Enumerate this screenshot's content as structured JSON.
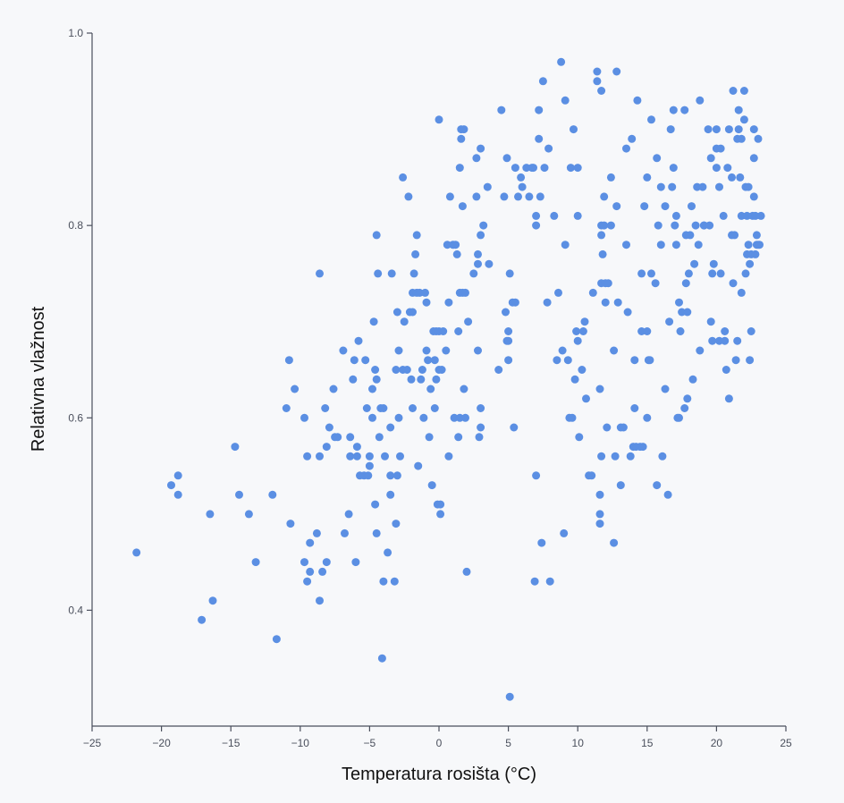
{
  "chart_data": {
    "type": "scatter",
    "title": "",
    "xlabel": "Temperatura rosišta (°C)",
    "ylabel": "Relativna vlažnost",
    "xlim": [
      -25,
      25
    ],
    "ylim": [
      0.3,
      1.0
    ],
    "x_ticks": [
      "−25",
      "−20",
      "−15",
      "−10",
      "−5",
      "0",
      "5",
      "10",
      "15",
      "20",
      "25"
    ],
    "y_ticks": [
      "0.4",
      "0.6",
      "0.8",
      "1.0"
    ],
    "grid": false,
    "point_color": "#5b8fe3",
    "points": [
      [
        -21.8,
        0.46
      ],
      [
        -19.3,
        0.53
      ],
      [
        -18.8,
        0.54
      ],
      [
        -18.8,
        0.52
      ],
      [
        -17.1,
        0.39
      ],
      [
        -16.5,
        0.5
      ],
      [
        -16.3,
        0.41
      ],
      [
        -14.7,
        0.57
      ],
      [
        -14.4,
        0.52
      ],
      [
        -13.7,
        0.5
      ],
      [
        -13.2,
        0.45
      ],
      [
        -12.0,
        0.52
      ],
      [
        -11.7,
        0.37
      ],
      [
        -11.0,
        0.61
      ],
      [
        -10.8,
        0.66
      ],
      [
        -10.7,
        0.49
      ],
      [
        -10.4,
        0.63
      ],
      [
        -9.7,
        0.6
      ],
      [
        -9.7,
        0.45
      ],
      [
        -9.5,
        0.56
      ],
      [
        -9.5,
        0.43
      ],
      [
        -9.3,
        0.47
      ],
      [
        -9.3,
        0.44
      ],
      [
        -8.8,
        0.48
      ],
      [
        -8.6,
        0.75
      ],
      [
        -8.6,
        0.56
      ],
      [
        -8.6,
        0.41
      ],
      [
        -8.4,
        0.44
      ],
      [
        -8.2,
        0.61
      ],
      [
        -8.1,
        0.57
      ],
      [
        -8.1,
        0.45
      ],
      [
        -7.9,
        0.59
      ],
      [
        -7.6,
        0.63
      ],
      [
        -7.5,
        0.58
      ],
      [
        -7.3,
        0.58
      ],
      [
        -6.9,
        0.67
      ],
      [
        -6.8,
        0.48
      ],
      [
        -6.5,
        0.5
      ],
      [
        -6.4,
        0.58
      ],
      [
        -6.4,
        0.56
      ],
      [
        -6.2,
        0.64
      ],
      [
        -6.1,
        0.66
      ],
      [
        -6.0,
        0.45
      ],
      [
        -5.9,
        0.57
      ],
      [
        -5.9,
        0.56
      ],
      [
        -5.8,
        0.68
      ],
      [
        -5.7,
        0.54
      ],
      [
        -5.4,
        0.54
      ],
      [
        -5.3,
        0.66
      ],
      [
        -5.2,
        0.61
      ],
      [
        -5.1,
        0.54
      ],
      [
        -5.0,
        0.55
      ],
      [
        -5.0,
        0.56
      ],
      [
        -4.8,
        0.6
      ],
      [
        -4.8,
        0.63
      ],
      [
        -4.7,
        0.7
      ],
      [
        -4.6,
        0.65
      ],
      [
        -4.6,
        0.51
      ],
      [
        -4.5,
        0.48
      ],
      [
        -4.5,
        0.64
      ],
      [
        -4.5,
        0.79
      ],
      [
        -4.4,
        0.75
      ],
      [
        -4.3,
        0.58
      ],
      [
        -4.2,
        0.61
      ],
      [
        -4.1,
        0.35
      ],
      [
        -4.0,
        0.43
      ],
      [
        -4.0,
        0.61
      ],
      [
        -3.9,
        0.56
      ],
      [
        -3.7,
        0.46
      ],
      [
        -3.5,
        0.52
      ],
      [
        -3.5,
        0.59
      ],
      [
        -3.5,
        0.54
      ],
      [
        -3.4,
        0.75
      ],
      [
        -3.2,
        0.43
      ],
      [
        -3.1,
        0.49
      ],
      [
        -3.1,
        0.65
      ],
      [
        -3.0,
        0.71
      ],
      [
        -3.0,
        0.54
      ],
      [
        -2.9,
        0.67
      ],
      [
        -2.9,
        0.6
      ],
      [
        -2.8,
        0.56
      ],
      [
        -2.6,
        0.85
      ],
      [
        -2.6,
        0.65
      ],
      [
        -2.5,
        0.7
      ],
      [
        -2.3,
        0.65
      ],
      [
        -2.2,
        0.83
      ],
      [
        -2.1,
        0.71
      ],
      [
        -2.0,
        0.64
      ],
      [
        -1.9,
        0.61
      ],
      [
        -1.9,
        0.71
      ],
      [
        -1.9,
        0.73
      ],
      [
        -1.8,
        0.75
      ],
      [
        -1.7,
        0.77
      ],
      [
        -1.6,
        0.79
      ],
      [
        -1.6,
        0.73
      ],
      [
        -1.5,
        0.55
      ],
      [
        -1.4,
        0.73
      ],
      [
        -1.3,
        0.64
      ],
      [
        -1.2,
        0.65
      ],
      [
        -1.1,
        0.6
      ],
      [
        -1.0,
        0.73
      ],
      [
        -0.9,
        0.72
      ],
      [
        -0.9,
        0.67
      ],
      [
        -0.8,
        0.66
      ],
      [
        -0.7,
        0.58
      ],
      [
        -0.6,
        0.63
      ],
      [
        -0.5,
        0.53
      ],
      [
        -0.4,
        0.69
      ],
      [
        -0.3,
        0.61
      ],
      [
        -0.3,
        0.66
      ],
      [
        -0.2,
        0.64
      ],
      [
        -0.2,
        0.69
      ],
      [
        -0.1,
        0.51
      ],
      [
        0.0,
        0.91
      ],
      [
        0.0,
        0.65
      ],
      [
        0.0,
        0.69
      ],
      [
        0.1,
        0.51
      ],
      [
        0.1,
        0.5
      ],
      [
        0.2,
        0.65
      ],
      [
        0.3,
        0.69
      ],
      [
        0.5,
        0.67
      ],
      [
        0.6,
        0.78
      ],
      [
        0.7,
        0.56
      ],
      [
        0.7,
        0.72
      ],
      [
        0.8,
        0.83
      ],
      [
        1.0,
        0.78
      ],
      [
        1.1,
        0.6
      ],
      [
        1.2,
        0.78
      ],
      [
        1.3,
        0.77
      ],
      [
        1.4,
        0.69
      ],
      [
        1.4,
        0.58
      ],
      [
        1.5,
        0.6
      ],
      [
        1.5,
        0.73
      ],
      [
        1.5,
        0.86
      ],
      [
        1.6,
        0.9
      ],
      [
        1.6,
        0.89
      ],
      [
        1.7,
        0.82
      ],
      [
        1.7,
        0.73
      ],
      [
        1.8,
        0.63
      ],
      [
        1.8,
        0.9
      ],
      [
        1.9,
        0.6
      ],
      [
        1.9,
        0.73
      ],
      [
        2.0,
        0.44
      ],
      [
        2.1,
        0.7
      ],
      [
        2.5,
        0.75
      ],
      [
        2.7,
        0.83
      ],
      [
        2.7,
        0.87
      ],
      [
        2.8,
        0.67
      ],
      [
        2.8,
        0.77
      ],
      [
        2.8,
        0.76
      ],
      [
        2.9,
        0.58
      ],
      [
        3.0,
        0.88
      ],
      [
        3.0,
        0.79
      ],
      [
        3.0,
        0.61
      ],
      [
        3.0,
        0.59
      ],
      [
        3.2,
        0.8
      ],
      [
        3.5,
        0.84
      ],
      [
        3.6,
        0.76
      ],
      [
        4.3,
        0.65
      ],
      [
        4.5,
        0.92
      ],
      [
        4.7,
        0.83
      ],
      [
        4.8,
        0.71
      ],
      [
        4.9,
        0.87
      ],
      [
        4.9,
        0.68
      ],
      [
        5.0,
        0.69
      ],
      [
        5.0,
        0.68
      ],
      [
        5.0,
        0.66
      ],
      [
        5.1,
        0.75
      ],
      [
        5.1,
        0.31
      ],
      [
        5.3,
        0.72
      ],
      [
        5.4,
        0.59
      ],
      [
        5.5,
        0.72
      ],
      [
        5.5,
        0.86
      ],
      [
        5.7,
        0.83
      ],
      [
        5.9,
        0.85
      ],
      [
        6.0,
        0.84
      ],
      [
        6.3,
        0.86
      ],
      [
        6.5,
        0.83
      ],
      [
        6.7,
        0.86
      ],
      [
        6.8,
        0.86
      ],
      [
        6.9,
        0.43
      ],
      [
        7.0,
        0.8
      ],
      [
        7.0,
        0.81
      ],
      [
        7.0,
        0.54
      ],
      [
        7.2,
        0.92
      ],
      [
        7.2,
        0.89
      ],
      [
        7.3,
        0.83
      ],
      [
        7.4,
        0.47
      ],
      [
        7.5,
        0.95
      ],
      [
        7.6,
        0.86
      ],
      [
        7.8,
        0.72
      ],
      [
        7.9,
        0.88
      ],
      [
        8.0,
        0.43
      ],
      [
        8.3,
        0.81
      ],
      [
        8.5,
        0.66
      ],
      [
        8.6,
        0.73
      ],
      [
        8.8,
        0.97
      ],
      [
        8.9,
        0.67
      ],
      [
        9.0,
        0.48
      ],
      [
        9.1,
        0.93
      ],
      [
        9.1,
        0.78
      ],
      [
        9.3,
        0.66
      ],
      [
        9.4,
        0.6
      ],
      [
        9.5,
        0.86
      ],
      [
        9.6,
        0.6
      ],
      [
        9.7,
        0.9
      ],
      [
        9.8,
        0.64
      ],
      [
        9.9,
        0.69
      ],
      [
        10.0,
        0.86
      ],
      [
        10.0,
        0.81
      ],
      [
        10.0,
        0.68
      ],
      [
        10.1,
        0.58
      ],
      [
        10.3,
        0.65
      ],
      [
        10.4,
        0.69
      ],
      [
        10.5,
        0.7
      ],
      [
        10.6,
        0.62
      ],
      [
        10.8,
        0.54
      ],
      [
        11.0,
        0.54
      ],
      [
        11.1,
        0.73
      ],
      [
        11.4,
        0.96
      ],
      [
        11.4,
        0.95
      ],
      [
        11.6,
        0.63
      ],
      [
        11.6,
        0.52
      ],
      [
        11.6,
        0.5
      ],
      [
        11.6,
        0.49
      ],
      [
        11.7,
        0.94
      ],
      [
        11.7,
        0.8
      ],
      [
        11.7,
        0.79
      ],
      [
        11.7,
        0.74
      ],
      [
        11.7,
        0.56
      ],
      [
        11.8,
        0.77
      ],
      [
        11.9,
        0.83
      ],
      [
        11.9,
        0.8
      ],
      [
        12.0,
        0.74
      ],
      [
        12.0,
        0.72
      ],
      [
        12.1,
        0.59
      ],
      [
        12.2,
        0.74
      ],
      [
        12.4,
        0.8
      ],
      [
        12.4,
        0.85
      ],
      [
        12.6,
        0.47
      ],
      [
        12.6,
        0.67
      ],
      [
        12.7,
        0.56
      ],
      [
        12.8,
        0.96
      ],
      [
        12.8,
        0.82
      ],
      [
        12.9,
        0.72
      ],
      [
        13.1,
        0.59
      ],
      [
        13.1,
        0.53
      ],
      [
        13.3,
        0.59
      ],
      [
        13.5,
        0.88
      ],
      [
        13.5,
        0.78
      ],
      [
        13.6,
        0.71
      ],
      [
        13.8,
        0.56
      ],
      [
        13.9,
        0.89
      ],
      [
        14.0,
        0.57
      ],
      [
        14.1,
        0.66
      ],
      [
        14.1,
        0.61
      ],
      [
        14.2,
        0.57
      ],
      [
        14.3,
        0.93
      ],
      [
        14.5,
        0.57
      ],
      [
        14.6,
        0.69
      ],
      [
        14.6,
        0.75
      ],
      [
        14.7,
        0.57
      ],
      [
        14.8,
        0.82
      ],
      [
        15.0,
        0.6
      ],
      [
        15.0,
        0.69
      ],
      [
        15.0,
        0.85
      ],
      [
        15.1,
        0.66
      ],
      [
        15.2,
        0.66
      ],
      [
        15.3,
        0.91
      ],
      [
        15.3,
        0.75
      ],
      [
        15.6,
        0.74
      ],
      [
        15.7,
        0.53
      ],
      [
        15.7,
        0.87
      ],
      [
        15.8,
        0.8
      ],
      [
        16.0,
        0.84
      ],
      [
        16.0,
        0.78
      ],
      [
        16.1,
        0.56
      ],
      [
        16.3,
        0.82
      ],
      [
        16.3,
        0.63
      ],
      [
        16.5,
        0.52
      ],
      [
        16.6,
        0.7
      ],
      [
        16.7,
        0.9
      ],
      [
        16.8,
        0.84
      ],
      [
        16.9,
        0.86
      ],
      [
        16.9,
        0.92
      ],
      [
        17.0,
        0.8
      ],
      [
        17.1,
        0.78
      ],
      [
        17.1,
        0.81
      ],
      [
        17.2,
        0.6
      ],
      [
        17.3,
        0.72
      ],
      [
        17.3,
        0.6
      ],
      [
        17.4,
        0.69
      ],
      [
        17.5,
        0.71
      ],
      [
        17.7,
        0.92
      ],
      [
        17.7,
        0.61
      ],
      [
        17.8,
        0.79
      ],
      [
        17.8,
        0.74
      ],
      [
        17.9,
        0.71
      ],
      [
        17.9,
        0.62
      ],
      [
        18.0,
        0.75
      ],
      [
        18.1,
        0.79
      ],
      [
        18.2,
        0.82
      ],
      [
        18.3,
        0.64
      ],
      [
        18.4,
        0.76
      ],
      [
        18.5,
        0.8
      ],
      [
        18.6,
        0.84
      ],
      [
        18.7,
        0.78
      ],
      [
        18.8,
        0.93
      ],
      [
        18.8,
        0.67
      ],
      [
        19.0,
        0.84
      ],
      [
        19.1,
        0.8
      ],
      [
        19.1,
        0.8
      ],
      [
        19.4,
        0.9
      ],
      [
        19.5,
        0.8
      ],
      [
        19.6,
        0.7
      ],
      [
        19.6,
        0.87
      ],
      [
        19.7,
        0.75
      ],
      [
        19.7,
        0.68
      ],
      [
        19.8,
        0.76
      ],
      [
        20.0,
        0.88
      ],
      [
        20.0,
        0.86
      ],
      [
        20.0,
        0.9
      ],
      [
        20.2,
        0.84
      ],
      [
        20.2,
        0.68
      ],
      [
        20.3,
        0.88
      ],
      [
        20.3,
        0.75
      ],
      [
        20.5,
        0.81
      ],
      [
        20.6,
        0.68
      ],
      [
        20.6,
        0.69
      ],
      [
        20.7,
        0.65
      ],
      [
        20.8,
        0.86
      ],
      [
        20.9,
        0.62
      ],
      [
        20.9,
        0.9
      ],
      [
        21.1,
        0.85
      ],
      [
        21.1,
        0.79
      ],
      [
        21.2,
        0.94
      ],
      [
        21.2,
        0.74
      ],
      [
        21.3,
        0.79
      ],
      [
        21.4,
        0.66
      ],
      [
        21.5,
        0.68
      ],
      [
        21.5,
        0.89
      ],
      [
        21.6,
        0.92
      ],
      [
        21.6,
        0.9
      ],
      [
        21.7,
        0.85
      ],
      [
        21.8,
        0.89
      ],
      [
        21.8,
        0.81
      ],
      [
        21.8,
        0.73
      ],
      [
        22.0,
        0.94
      ],
      [
        22.0,
        0.91
      ],
      [
        22.1,
        0.84
      ],
      [
        22.1,
        0.75
      ],
      [
        22.2,
        0.77
      ],
      [
        22.2,
        0.81
      ],
      [
        22.3,
        0.84
      ],
      [
        22.3,
        0.78
      ],
      [
        22.4,
        0.76
      ],
      [
        22.4,
        0.66
      ],
      [
        22.5,
        0.69
      ],
      [
        22.5,
        0.77
      ],
      [
        22.6,
        0.81
      ],
      [
        22.7,
        0.9
      ],
      [
        22.7,
        0.87
      ],
      [
        22.7,
        0.83
      ],
      [
        22.8,
        0.77
      ],
      [
        22.8,
        0.81
      ],
      [
        22.9,
        0.79
      ],
      [
        22.9,
        0.78
      ],
      [
        23.0,
        0.89
      ],
      [
        23.0,
        0.78
      ],
      [
        23.1,
        0.78
      ],
      [
        23.2,
        0.81
      ]
    ]
  }
}
